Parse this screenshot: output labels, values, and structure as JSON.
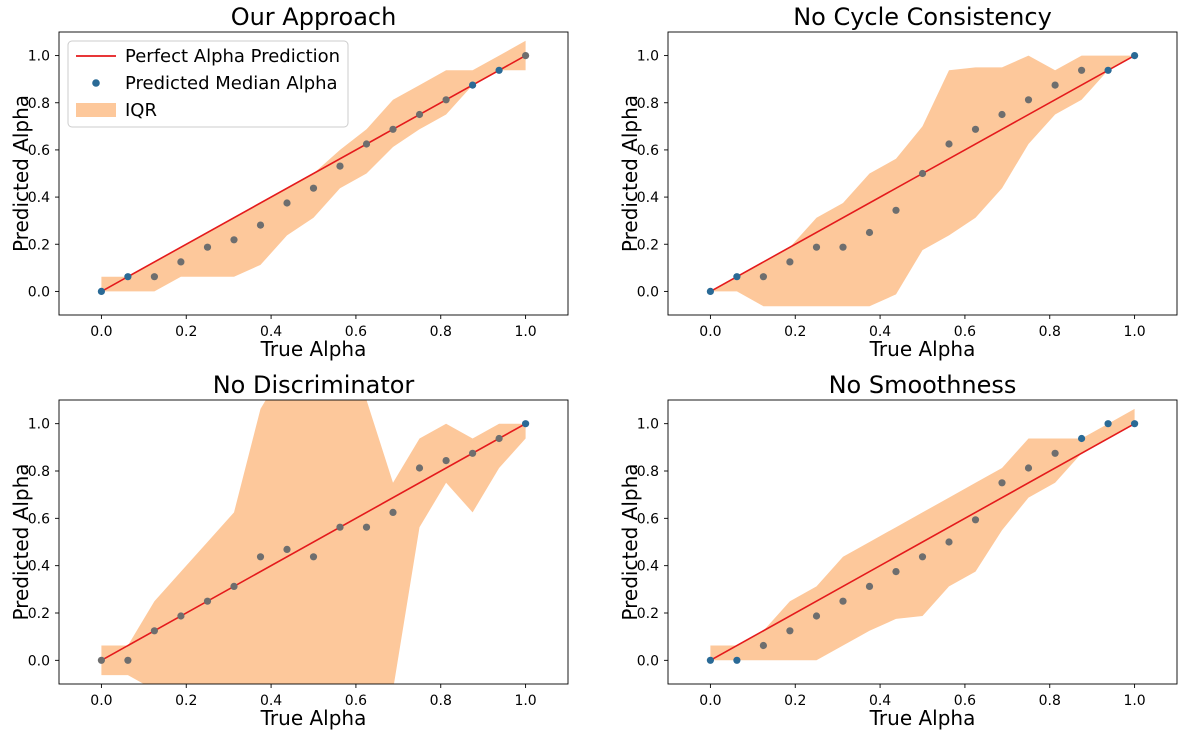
{
  "figure": {
    "colors": {
      "ideal_line": "#e41a1c",
      "median_points": "#2a6a96",
      "iqr_fill": "#fdc89b",
      "overlap_points": "#6e6e6e"
    },
    "legend": {
      "location": "upper-left of first panel",
      "entries": [
        "Perfect Alpha Prediction",
        "Predicted Median Alpha",
        "IQR"
      ]
    }
  },
  "chart_data": [
    {
      "type": "scatter",
      "title": "Our Approach",
      "xlabel": "True Alpha",
      "ylabel": "Predicted Alpha",
      "xlim": [
        -0.1,
        1.1
      ],
      "ylim": [
        -0.1,
        1.1
      ],
      "xticks": [
        "0.0",
        "0.2",
        "0.4",
        "0.6",
        "0.8",
        "1.0"
      ],
      "yticks": [
        "0.0",
        "0.2",
        "0.4",
        "0.6",
        "0.8",
        "1.0"
      ],
      "x": [
        0.0,
        0.0625,
        0.125,
        0.1875,
        0.25,
        0.3125,
        0.375,
        0.4375,
        0.5,
        0.5625,
        0.625,
        0.6875,
        0.75,
        0.8125,
        0.875,
        0.9375,
        1.0
      ],
      "median": [
        0.0,
        0.0625,
        0.0625,
        0.125,
        0.1875,
        0.2188,
        0.2812,
        0.375,
        0.4375,
        0.5312,
        0.625,
        0.6875,
        0.75,
        0.8125,
        0.875,
        0.9375,
        1.0
      ],
      "iqr_low": [
        0.0,
        0.0,
        0.0,
        0.0625,
        0.0625,
        0.0625,
        0.1125,
        0.2375,
        0.3125,
        0.4375,
        0.5,
        0.6125,
        0.6875,
        0.75,
        0.875,
        0.9375,
        0.9375
      ],
      "iqr_high": [
        0.0625,
        0.0625,
        0.125,
        0.1875,
        0.25,
        0.3125,
        0.375,
        0.4375,
        0.5,
        0.6,
        0.6875,
        0.8125,
        0.875,
        0.9375,
        0.9375,
        1.0,
        1.0625
      ],
      "legend": true
    },
    {
      "type": "scatter",
      "title": "No Cycle Consistency",
      "xlabel": "True Alpha",
      "ylabel": "Predicted Alpha",
      "xlim": [
        -0.1,
        1.1
      ],
      "ylim": [
        -0.1,
        1.1
      ],
      "xticks": [
        "0.0",
        "0.2",
        "0.4",
        "0.6",
        "0.8",
        "1.0"
      ],
      "yticks": [
        "0.0",
        "0.2",
        "0.4",
        "0.6",
        "0.8",
        "1.0"
      ],
      "x": [
        0.0,
        0.0625,
        0.125,
        0.1875,
        0.25,
        0.3125,
        0.375,
        0.4375,
        0.5,
        0.5625,
        0.625,
        0.6875,
        0.75,
        0.8125,
        0.875,
        0.9375,
        1.0
      ],
      "median": [
        0.0,
        0.0625,
        0.0625,
        0.125,
        0.1875,
        0.1875,
        0.25,
        0.3438,
        0.5,
        0.625,
        0.6875,
        0.75,
        0.8125,
        0.875,
        0.9375,
        0.9375,
        1.0
      ],
      "iqr_low": [
        0.0,
        0.0,
        -0.0625,
        -0.0625,
        -0.0625,
        -0.0625,
        -0.0625,
        -0.0125,
        0.175,
        0.2375,
        0.3125,
        0.4375,
        0.625,
        0.75,
        0.8125,
        0.9375,
        1.0
      ],
      "iqr_high": [
        0.0,
        0.0625,
        0.125,
        0.1875,
        0.3125,
        0.375,
        0.5,
        0.5625,
        0.7,
        0.9375,
        0.95,
        0.95,
        1.0,
        0.9375,
        1.0,
        1.0,
        1.0
      ],
      "legend": false
    },
    {
      "type": "scatter",
      "title": "No Discriminator",
      "xlabel": "True Alpha",
      "ylabel": "Predicted Alpha",
      "xlim": [
        -0.1,
        1.1
      ],
      "ylim": [
        -0.1,
        1.1
      ],
      "xticks": [
        "0.0",
        "0.2",
        "0.4",
        "0.6",
        "0.8",
        "1.0"
      ],
      "yticks": [
        "0.0",
        "0.2",
        "0.4",
        "0.6",
        "0.8",
        "1.0"
      ],
      "x": [
        0.0,
        0.0625,
        0.125,
        0.1875,
        0.25,
        0.3125,
        0.375,
        0.4375,
        0.5,
        0.5625,
        0.625,
        0.6875,
        0.75,
        0.8125,
        0.875,
        0.9375,
        1.0
      ],
      "median": [
        0.0,
        0.0,
        0.125,
        0.1875,
        0.25,
        0.3125,
        0.4375,
        0.4688,
        0.4375,
        0.5625,
        0.5625,
        0.625,
        0.8125,
        0.8438,
        0.875,
        0.9375,
        1.0
      ],
      "iqr_low": [
        -0.0625,
        -0.0625,
        -0.125,
        -0.125,
        -0.125,
        -0.125,
        -0.125,
        -0.125,
        -0.125,
        -0.125,
        -0.125,
        -0.125,
        0.5625,
        0.75,
        0.625,
        0.8125,
        0.9375
      ],
      "iqr_high": [
        0.0625,
        0.0625,
        0.25,
        0.375,
        0.5,
        0.625,
        1.0625,
        1.25,
        1.25,
        1.25,
        1.1,
        0.75,
        0.9375,
        1.0,
        0.9375,
        1.0,
        1.0
      ],
      "legend": false
    },
    {
      "type": "scatter",
      "title": "No Smoothness",
      "xlabel": "True Alpha",
      "ylabel": "Predicted Alpha",
      "xlim": [
        -0.1,
        1.1
      ],
      "ylim": [
        -0.1,
        1.1
      ],
      "xticks": [
        "0.0",
        "0.2",
        "0.4",
        "0.6",
        "0.8",
        "1.0"
      ],
      "yticks": [
        "0.0",
        "0.2",
        "0.4",
        "0.6",
        "0.8",
        "1.0"
      ],
      "x": [
        0.0,
        0.0625,
        0.125,
        0.1875,
        0.25,
        0.3125,
        0.375,
        0.4375,
        0.5,
        0.5625,
        0.625,
        0.6875,
        0.75,
        0.8125,
        0.875,
        0.9375,
        1.0
      ],
      "median": [
        0.0,
        0.0,
        0.0625,
        0.125,
        0.1875,
        0.25,
        0.3125,
        0.375,
        0.4375,
        0.5,
        0.5938,
        0.75,
        0.8125,
        0.875,
        0.9375,
        1.0,
        1.0
      ],
      "iqr_low": [
        0.0,
        0.0,
        0.0,
        0.0,
        0.0,
        0.0625,
        0.125,
        0.175,
        0.1875,
        0.3125,
        0.375,
        0.55,
        0.6875,
        0.75,
        0.875,
        0.9375,
        1.0
      ],
      "iqr_high": [
        0.0625,
        0.0625,
        0.125,
        0.25,
        0.3125,
        0.4375,
        0.5,
        0.5625,
        0.625,
        0.6875,
        0.75,
        0.8125,
        0.9375,
        0.9375,
        0.9375,
        1.0,
        1.0625
      ],
      "legend": false
    }
  ]
}
